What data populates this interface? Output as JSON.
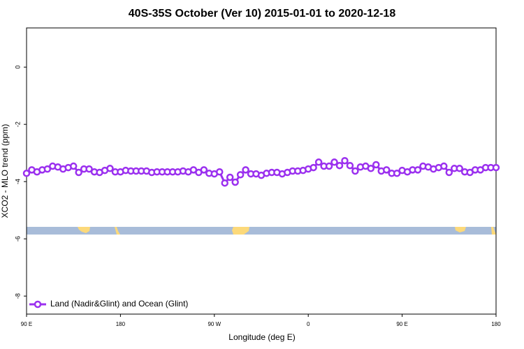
{
  "chart_data": {
    "type": "line",
    "title": "40S-35S October (Ver 10)   2015-01-01 to 2020-12-18",
    "xlabel": "Longitude (deg E)",
    "ylabel": "XCO2 - MLO trend (ppm)",
    "x": [
      90,
      95,
      100,
      105,
      110,
      115,
      120,
      125,
      130,
      135,
      140,
      145,
      150,
      155,
      160,
      165,
      170,
      175,
      180,
      185,
      190,
      195,
      200,
      205,
      210,
      215,
      220,
      225,
      230,
      235,
      240,
      245,
      250,
      255,
      260,
      265,
      270,
      275,
      280,
      285,
      290,
      295,
      300,
      305,
      310,
      315,
      320,
      325,
      330,
      335,
      340,
      345,
      350,
      355,
      360,
      365,
      370,
      375,
      380,
      385,
      390,
      395,
      400,
      405,
      410,
      415,
      420,
      425,
      430,
      435,
      440,
      445,
      450,
      455,
      460,
      465,
      470,
      475,
      480,
      485,
      490,
      495,
      500,
      505,
      510,
      515,
      520,
      525,
      530,
      535,
      540
    ],
    "series": [
      {
        "name": "Land (Nadir&Glint) and Ocean (Glint)",
        "color": "#9b30ef",
        "values": [
          -3.71,
          -3.59,
          -3.66,
          -3.59,
          -3.56,
          -3.46,
          -3.49,
          -3.56,
          -3.51,
          -3.46,
          -3.68,
          -3.56,
          -3.56,
          -3.66,
          -3.68,
          -3.61,
          -3.54,
          -3.66,
          -3.66,
          -3.61,
          -3.63,
          -3.63,
          -3.63,
          -3.63,
          -3.68,
          -3.66,
          -3.66,
          -3.66,
          -3.66,
          -3.66,
          -3.63,
          -3.66,
          -3.59,
          -3.68,
          -3.59,
          -3.71,
          -3.73,
          -3.66,
          -4.05,
          -3.85,
          -4.02,
          -3.76,
          -3.59,
          -3.73,
          -3.73,
          -3.78,
          -3.71,
          -3.68,
          -3.68,
          -3.73,
          -3.68,
          -3.63,
          -3.63,
          -3.61,
          -3.56,
          -3.51,
          -3.32,
          -3.46,
          -3.46,
          -3.32,
          -3.44,
          -3.27,
          -3.44,
          -3.63,
          -3.49,
          -3.46,
          -3.54,
          -3.41,
          -3.63,
          -3.59,
          -3.71,
          -3.71,
          -3.61,
          -3.66,
          -3.59,
          -3.59,
          -3.46,
          -3.49,
          -3.56,
          -3.51,
          -3.46,
          -3.68,
          -3.54,
          -3.54,
          -3.66,
          -3.68,
          -3.59,
          -3.59,
          -3.51,
          -3.51,
          -3.51
        ]
      }
    ],
    "xlim": [
      90,
      540
    ],
    "xticks": [
      {
        "value": 90,
        "label": "90 E"
      },
      180,
      {
        "value": 270,
        "label": "90 W"
      },
      {
        "value": 360,
        "label": "0"
      },
      {
        "value": 450,
        "label": "90 E"
      },
      {
        "value": 540,
        "label": "180"
      }
    ],
    "ylim": [
      -8.63,
      1.37
    ],
    "yticks": [
      0,
      -2,
      -4,
      -6,
      -8
    ],
    "legend": "bottom-left"
  }
}
